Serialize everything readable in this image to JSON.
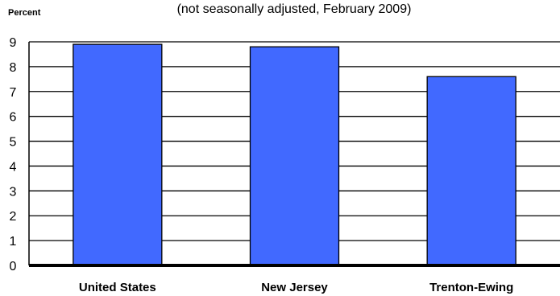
{
  "chart_data": {
    "type": "bar",
    "subtitle": "(not seasonally adjusted, February 2009)",
    "ylabel": "Percent",
    "xlabel": "",
    "categories": [
      "United States",
      "New Jersey",
      "Trenton-Ewing"
    ],
    "values": [
      8.9,
      8.8,
      7.6
    ],
    "ylim": [
      0,
      9
    ],
    "yticks": [
      "0",
      "1",
      "2",
      "3",
      "4",
      "5",
      "6",
      "7",
      "8",
      "9"
    ],
    "grid": true,
    "bar_color": "#4169FF",
    "bar_outline_color": "#000000",
    "grid_color": "#000000"
  }
}
